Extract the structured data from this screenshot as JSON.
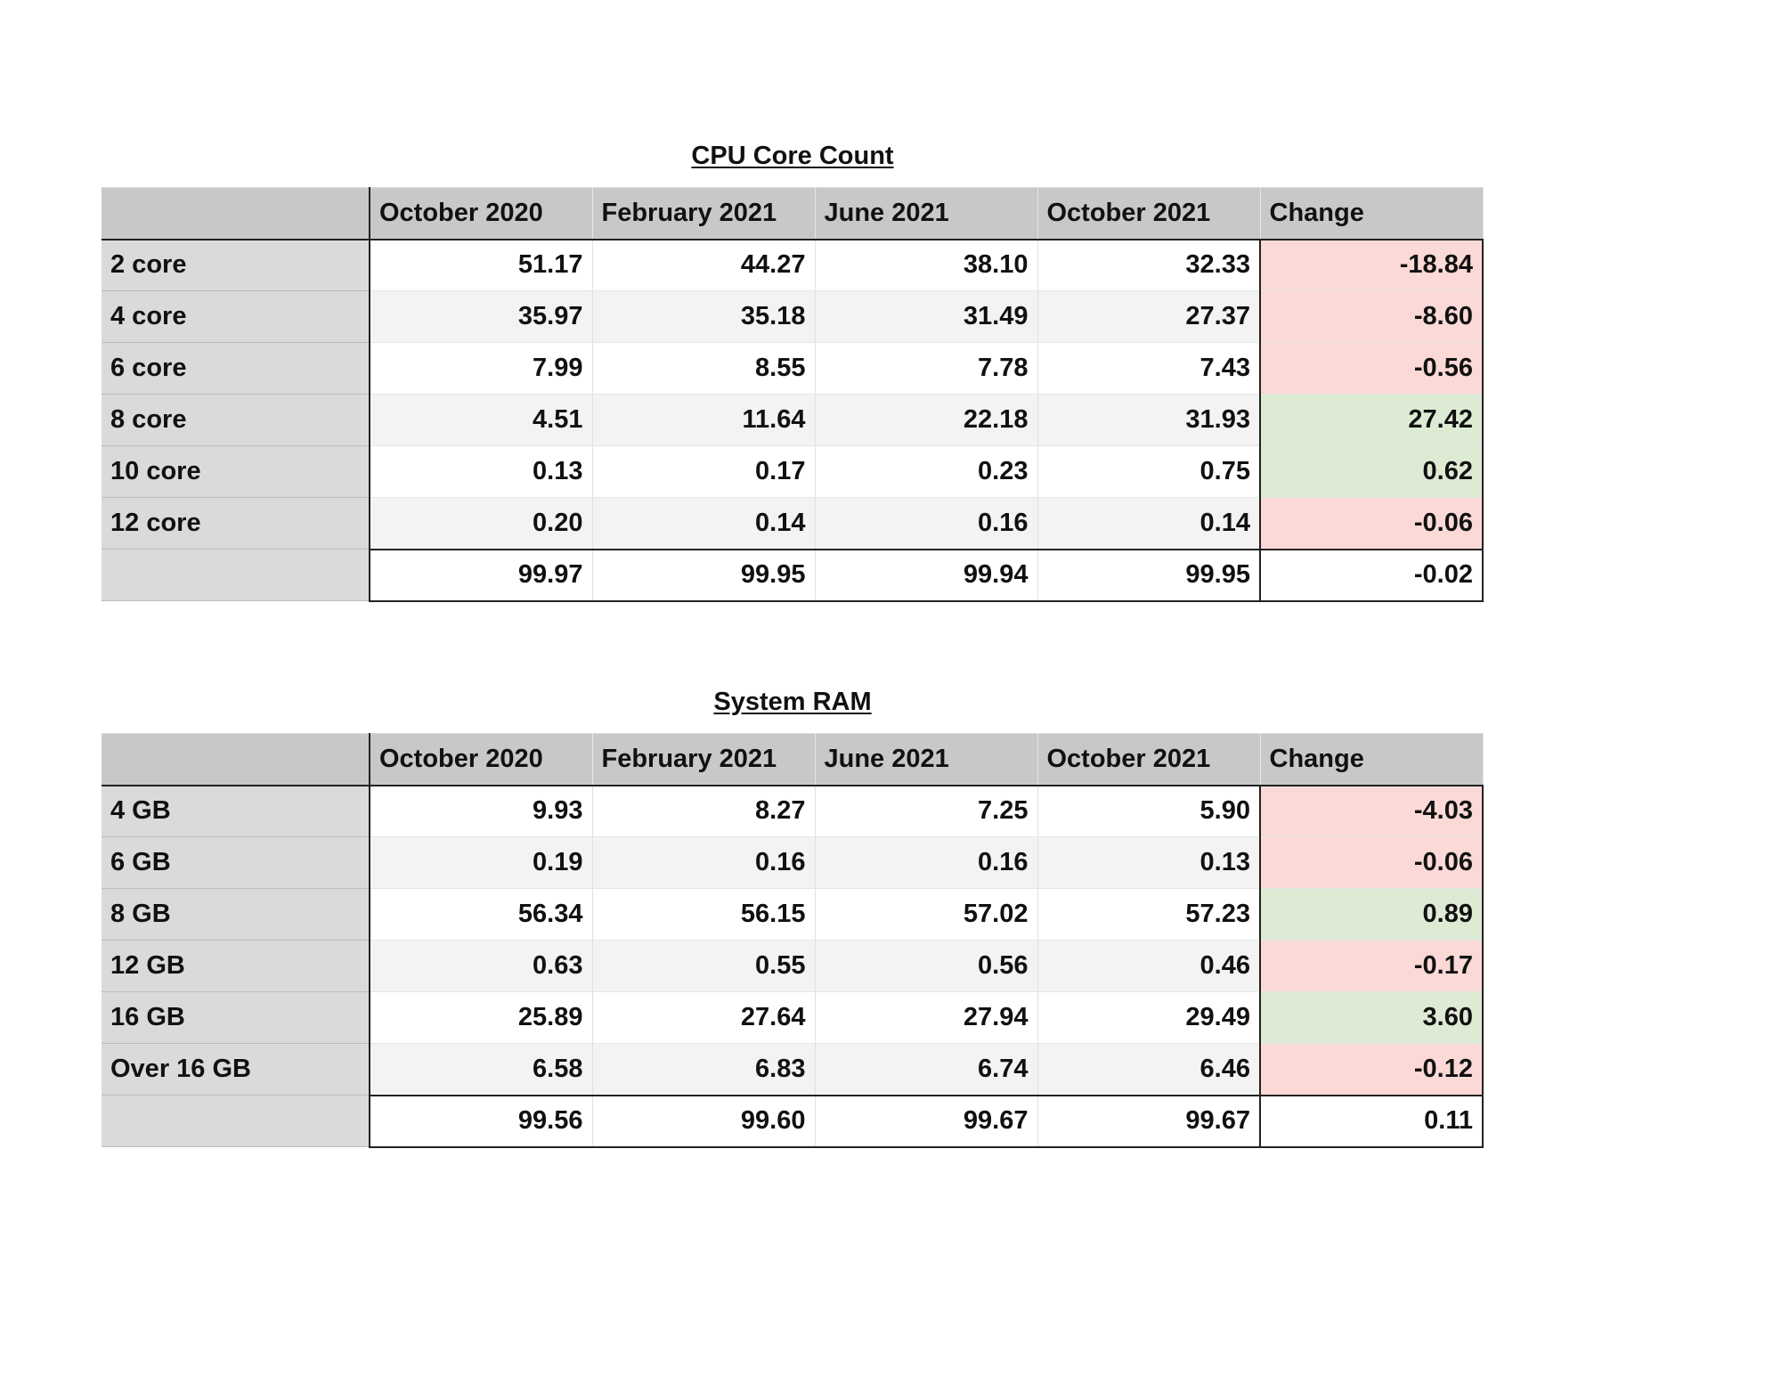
{
  "tables": [
    {
      "title": "CPU Core Count",
      "headers": [
        "",
        "October 2020",
        "February 2021",
        "June 2021",
        "October 2021",
        "Change"
      ],
      "rows": [
        {
          "label": "2 core",
          "values": [
            "51.17",
            "44.27",
            "38.10",
            "32.33",
            "-18.84"
          ],
          "change_trend": "negative"
        },
        {
          "label": "4 core",
          "values": [
            "35.97",
            "35.18",
            "31.49",
            "27.37",
            "-8.60"
          ],
          "change_trend": "negative"
        },
        {
          "label": "6 core",
          "values": [
            "7.99",
            "8.55",
            "7.78",
            "7.43",
            "-0.56"
          ],
          "change_trend": "negative"
        },
        {
          "label": "8 core",
          "values": [
            "4.51",
            "11.64",
            "22.18",
            "31.93",
            "27.42"
          ],
          "change_trend": "positive"
        },
        {
          "label": "10 core",
          "values": [
            "0.13",
            "0.17",
            "0.23",
            "0.75",
            "0.62"
          ],
          "change_trend": "positive"
        },
        {
          "label": "12 core",
          "values": [
            "0.20",
            "0.14",
            "0.16",
            "0.14",
            "-0.06"
          ],
          "change_trend": "negative"
        }
      ],
      "total": {
        "label": "",
        "values": [
          "99.97",
          "99.95",
          "99.94",
          "99.95",
          "-0.02"
        ]
      }
    },
    {
      "title": "System RAM",
      "headers": [
        "",
        "October 2020",
        "February 2021",
        "June 2021",
        "October 2021",
        "Change"
      ],
      "rows": [
        {
          "label": "4 GB",
          "values": [
            "9.93",
            "8.27",
            "7.25",
            "5.90",
            "-4.03"
          ],
          "change_trend": "negative"
        },
        {
          "label": "6 GB",
          "values": [
            "0.19",
            "0.16",
            "0.16",
            "0.13",
            "-0.06"
          ],
          "change_trend": "negative"
        },
        {
          "label": "8 GB",
          "values": [
            "56.34",
            "56.15",
            "57.02",
            "57.23",
            "0.89"
          ],
          "change_trend": "positive"
        },
        {
          "label": "12 GB",
          "values": [
            "0.63",
            "0.55",
            "0.56",
            "0.46",
            "-0.17"
          ],
          "change_trend": "negative"
        },
        {
          "label": "16 GB",
          "values": [
            "25.89",
            "27.64",
            "27.94",
            "29.49",
            "3.60"
          ],
          "change_trend": "positive"
        },
        {
          "label": "Over 16 GB",
          "values": [
            "6.58",
            "6.83",
            "6.74",
            "6.46",
            "-0.12"
          ],
          "change_trend": "negative"
        }
      ],
      "total": {
        "label": "",
        "values": [
          "99.56",
          "99.60",
          "99.67",
          "99.67",
          "0.11"
        ]
      }
    }
  ],
  "colors": {
    "negative_change_fill": "#fbd9d6",
    "positive_change_fill": "#deebd4",
    "header_fill": "#c8c8c8",
    "row_label_fill": "#dadada"
  }
}
